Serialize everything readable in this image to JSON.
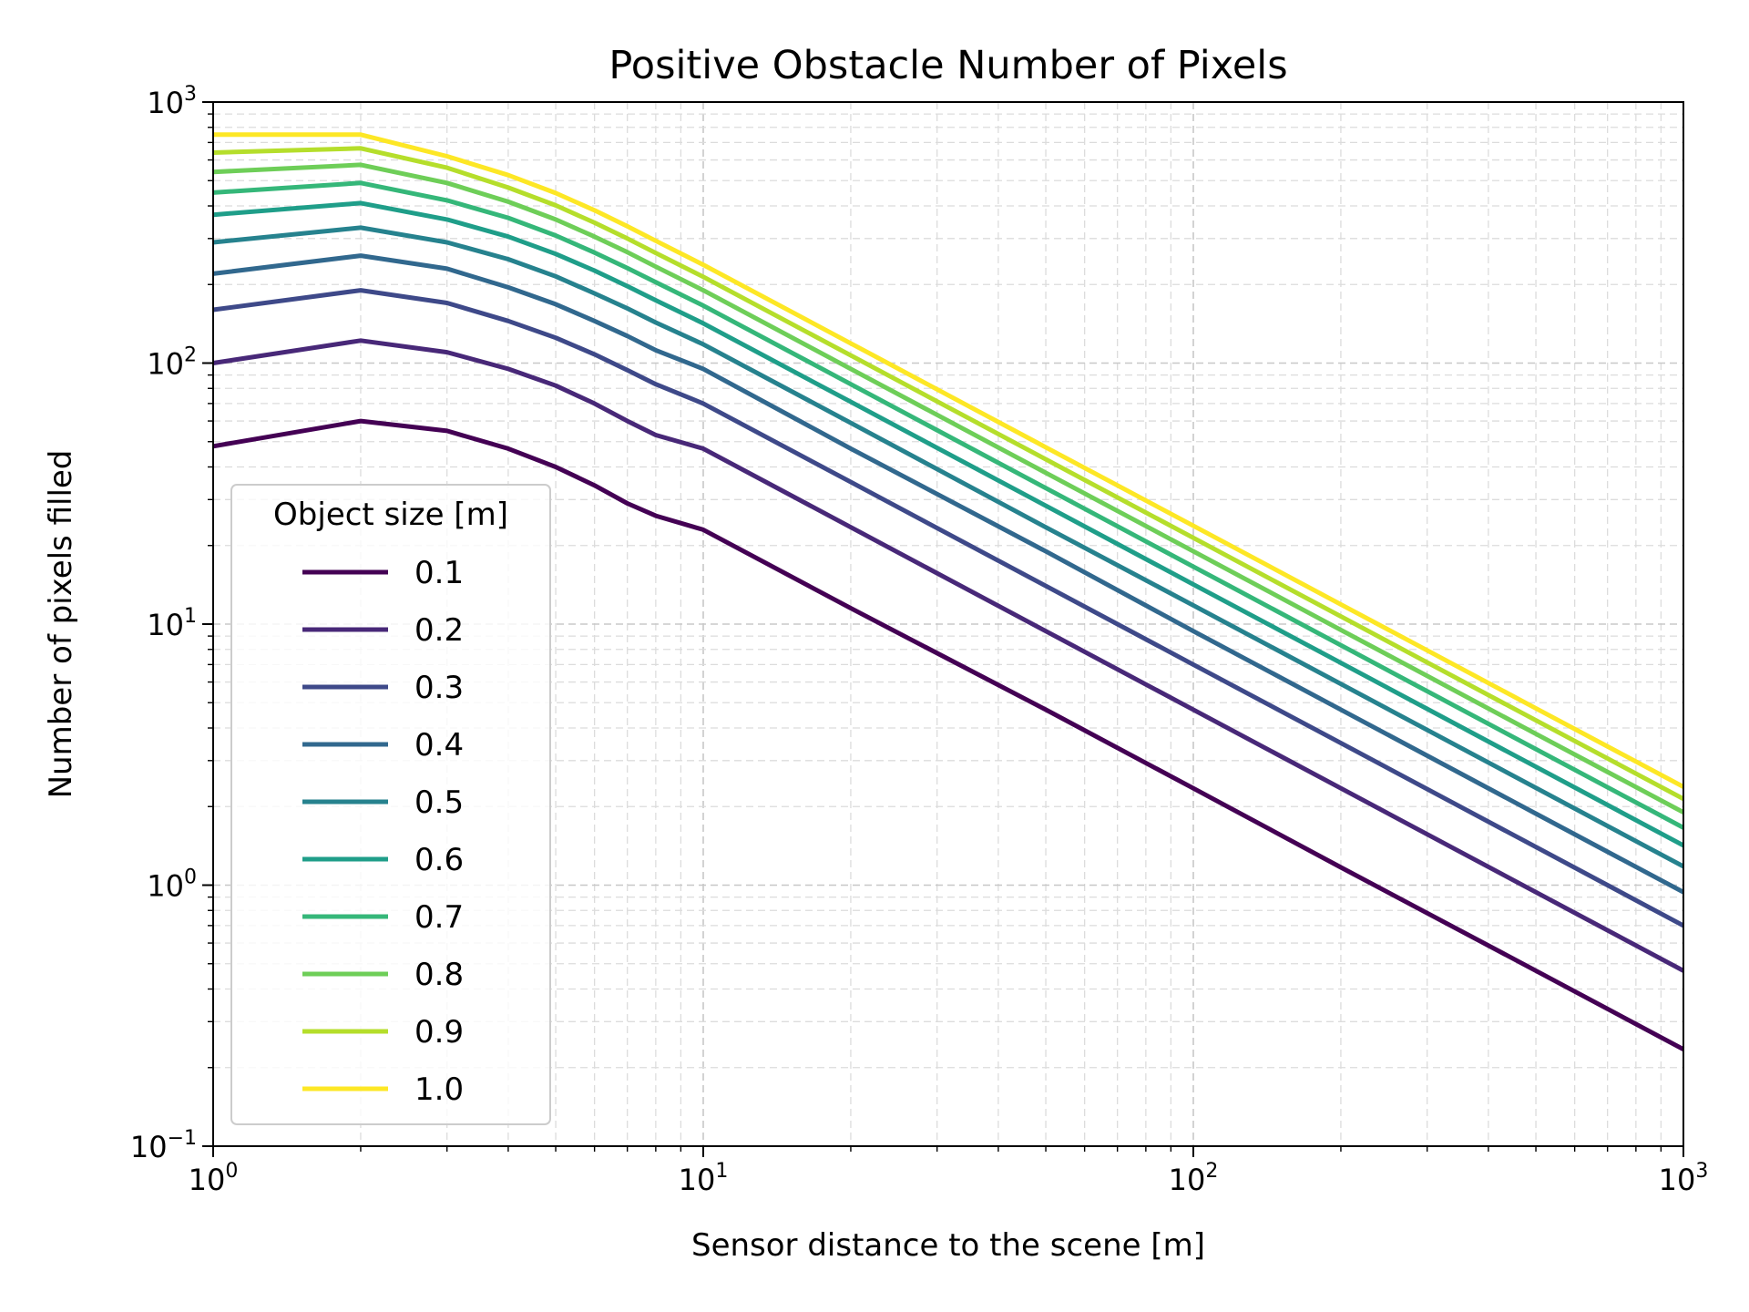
{
  "chart_data": {
    "type": "line",
    "title": "Positive Obstacle Number of Pixels",
    "xlabel": "Sensor distance to the scene [m]",
    "ylabel": "Number of pixels filled",
    "xscale": "log",
    "yscale": "log",
    "xlim": [
      1,
      1000
    ],
    "ylim": [
      0.1,
      1000
    ],
    "grid": true,
    "grid_minor": true,
    "x_ticks": [
      {
        "base": "10",
        "exp": "0",
        "value": 1
      },
      {
        "base": "10",
        "exp": "1",
        "value": 10
      },
      {
        "base": "10",
        "exp": "2",
        "value": 100
      },
      {
        "base": "10",
        "exp": "3",
        "value": 1000
      }
    ],
    "y_ticks": [
      {
        "base": "10",
        "exp": "−1",
        "value": 0.1
      },
      {
        "base": "10",
        "exp": "0",
        "value": 1
      },
      {
        "base": "10",
        "exp": "1",
        "value": 10
      },
      {
        "base": "10",
        "exp": "2",
        "value": 100
      },
      {
        "base": "10",
        "exp": "3",
        "value": 1000
      }
    ],
    "legend": {
      "title": "Object size [m]",
      "placement": "lower-left"
    },
    "x": [
      1,
      2,
      3,
      4,
      5,
      6,
      7,
      8,
      10,
      20,
      50,
      100,
      200,
      500,
      1000
    ],
    "series": [
      {
        "name": "0.1",
        "color": "#440154",
        "values": [
          48,
          60,
          55,
          47,
          40,
          34,
          29,
          26,
          23,
          11.5,
          4.7,
          2.35,
          1.17,
          0.47,
          0.235
        ]
      },
      {
        "name": "0.2",
        "color": "#482878",
        "values": [
          100,
          122,
          110,
          95,
          82,
          70,
          60,
          53,
          47,
          23.5,
          9.4,
          4.7,
          2.35,
          0.94,
          0.47
        ]
      },
      {
        "name": "0.3",
        "color": "#3e4989",
        "values": [
          160,
          190,
          170,
          145,
          125,
          108,
          94,
          83,
          70,
          35,
          14,
          7,
          3.5,
          1.4,
          0.7
        ]
      },
      {
        "name": "0.4",
        "color": "#31688e",
        "values": [
          220,
          258,
          230,
          195,
          168,
          145,
          127,
          112,
          95,
          47,
          19,
          9.4,
          4.7,
          1.88,
          0.94
        ]
      },
      {
        "name": "0.5",
        "color": "#26828e",
        "values": [
          290,
          330,
          290,
          250,
          215,
          185,
          162,
          143,
          118,
          59,
          23.5,
          11.8,
          5.9,
          2.36,
          1.18
        ]
      },
      {
        "name": "0.6",
        "color": "#1f9e89",
        "values": [
          370,
          410,
          355,
          305,
          262,
          226,
          197,
          174,
          142,
          71,
          28.4,
          14.2,
          7.1,
          2.84,
          1.42
        ]
      },
      {
        "name": "0.7",
        "color": "#35b779",
        "values": [
          450,
          490,
          420,
          360,
          308,
          265,
          231,
          204,
          166,
          83,
          33.2,
          16.6,
          8.3,
          3.32,
          1.66
        ]
      },
      {
        "name": "0.8",
        "color": "#6ece58",
        "values": [
          540,
          575,
          490,
          415,
          355,
          305,
          266,
          234,
          190,
          95,
          38,
          19,
          9.5,
          3.8,
          1.9
        ]
      },
      {
        "name": "0.9",
        "color": "#b5de2b",
        "values": [
          640,
          665,
          560,
          470,
          402,
          345,
          300,
          264,
          214,
          107,
          42.8,
          21.4,
          10.7,
          4.28,
          2.14
        ]
      },
      {
        "name": "1.0",
        "color": "#fde725",
        "values": [
          750,
          750,
          620,
          525,
          448,
          385,
          334,
          294,
          238,
          119,
          47.6,
          23.8,
          11.9,
          4.76,
          2.38
        ]
      }
    ]
  }
}
